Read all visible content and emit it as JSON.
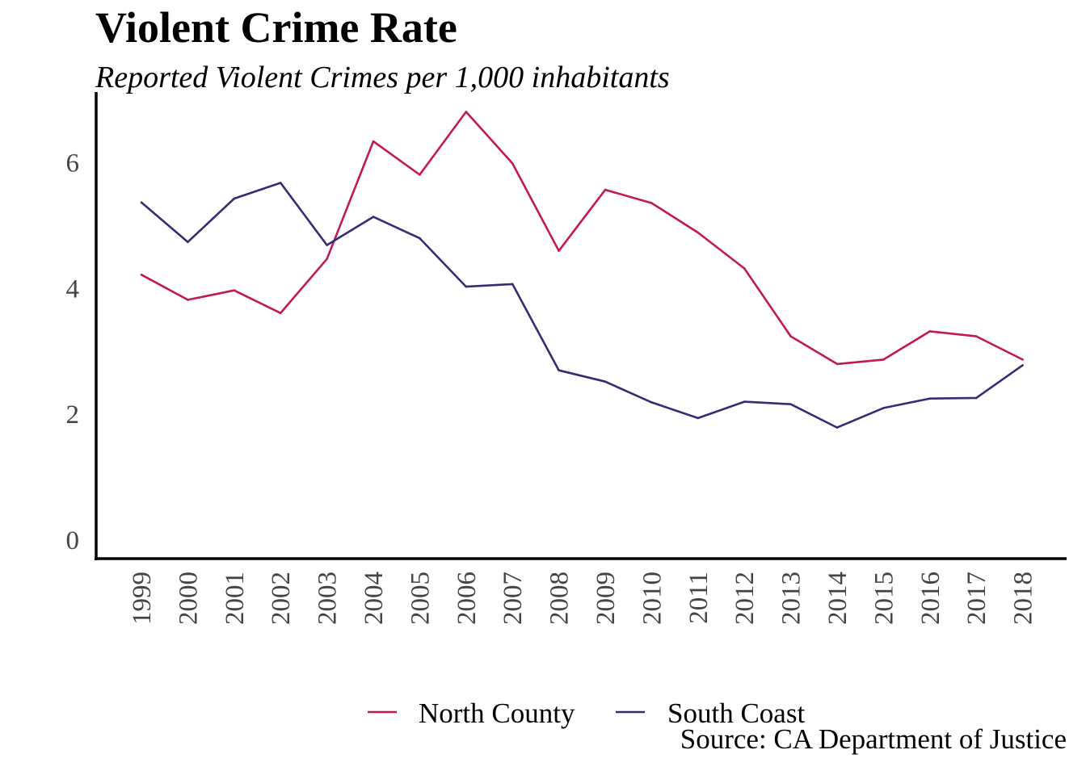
{
  "chart_data": {
    "type": "line",
    "title": "Violent Crime Rate",
    "subtitle": "Reported Violent Crimes per 1,000 inhabitants",
    "xlabel": "",
    "ylabel": "",
    "categories": [
      "1999",
      "2000",
      "2001",
      "2002",
      "2003",
      "2004",
      "2005",
      "2006",
      "2007",
      "2008",
      "2009",
      "2010",
      "2011",
      "2012",
      "2013",
      "2014",
      "2015",
      "2016",
      "2017",
      "2018"
    ],
    "ylim": [
      0,
      7.1
    ],
    "yticks": [
      0,
      2,
      4,
      6
    ],
    "grid": false,
    "legend_position": "bottom",
    "series": [
      {
        "name": "North County",
        "color": "#c2185b",
        "values": [
          4.22,
          3.82,
          3.97,
          3.61,
          4.47,
          6.34,
          5.81,
          6.81,
          5.99,
          4.6,
          5.57,
          5.36,
          4.89,
          4.32,
          3.24,
          2.8,
          2.87,
          3.32,
          3.24,
          2.87
        ]
      },
      {
        "name": "South Coast",
        "color": "#3b2a73",
        "values": [
          5.37,
          4.74,
          5.43,
          5.68,
          4.69,
          5.14,
          4.8,
          4.03,
          4.07,
          2.7,
          2.52,
          2.19,
          1.94,
          2.2,
          2.16,
          1.79,
          2.1,
          2.25,
          2.26,
          2.78
        ]
      }
    ]
  },
  "caption": "Source: CA Department of Justice"
}
